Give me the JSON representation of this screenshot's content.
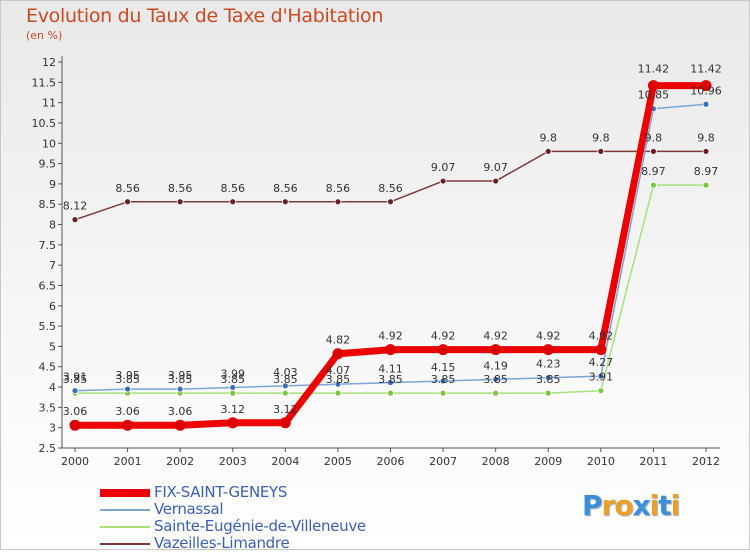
{
  "header": {
    "title": "Evolution du Taux de Taxe d'Habitation",
    "subtitle": "(en %)"
  },
  "logo": {
    "text": "Proxiti",
    "letters": [
      "P",
      "r",
      "o",
      "x",
      "i",
      "t",
      "i"
    ],
    "colors": [
      "#3a8fd8",
      "#e8a02a",
      "#e8a02a",
      "#3a8fd8",
      "#e8a02a",
      "#3a8fd8",
      "#e8a02a"
    ]
  },
  "chart_data": {
    "type": "line",
    "title": "Evolution du Taux de Taxe d'Habitation",
    "ylabel": "(en %)",
    "xlabel": "",
    "categories": [
      "2000",
      "2001",
      "2002",
      "2003",
      "2004",
      "2005",
      "2006",
      "2007",
      "2008",
      "2009",
      "2010",
      "2011",
      "2012"
    ],
    "ylim": [
      2.5,
      12
    ],
    "yticks": [
      "2.5",
      "3",
      "3.5",
      "4",
      "4.5",
      "5",
      "5.5",
      "6",
      "6.5",
      "7",
      "7.5",
      "8",
      "8.5",
      "9",
      "9.5",
      "10",
      "10.5",
      "11",
      "11.5",
      "12"
    ],
    "grid": false,
    "legend_position": "bottom-left",
    "series": [
      {
        "name": "FIX-SAINT-GENEYS",
        "color": "#ee0000",
        "marker": "#dd0000",
        "width": 7,
        "radius": 5.5,
        "values": [
          3.06,
          3.06,
          3.06,
          3.12,
          3.12,
          4.82,
          4.92,
          4.92,
          4.92,
          4.92,
          4.92,
          11.42,
          11.42
        ],
        "labels": [
          "3.06",
          "3.06",
          "3.06",
          "3.12",
          "3.12",
          "4.82",
          "4.92",
          "4.92",
          "4.92",
          "4.92",
          "4.92",
          "11.42",
          "11.42"
        ]
      },
      {
        "name": "Vernassal",
        "color": "#7aa6d6",
        "marker": "#3a6fb8",
        "width": 1.5,
        "radius": 3,
        "values": [
          3.91,
          3.95,
          3.95,
          3.99,
          4.03,
          4.07,
          4.11,
          4.15,
          4.19,
          4.23,
          4.27,
          10.85,
          10.96
        ],
        "labels": [
          "3.91",
          "3.95",
          "3.95",
          "3.99",
          "4.03",
          "4.07",
          "4.11",
          "4.15",
          "4.19",
          "4.23",
          "4.27",
          "10.85",
          "10.96"
        ]
      },
      {
        "name": "Sainte-Eugénie-de-Villeneuve",
        "color": "#a8e07a",
        "marker": "#78c840",
        "width": 1.5,
        "radius": 3,
        "values": [
          3.85,
          3.85,
          3.85,
          3.85,
          3.85,
          3.85,
          3.85,
          3.85,
          3.85,
          3.85,
          3.91,
          8.97,
          8.97
        ],
        "labels": [
          "3.85",
          "3.85",
          "3.85",
          "3.85",
          "3.85",
          "3.85",
          "3.85",
          "3.85",
          "3.85",
          "3.85",
          "3.91",
          "8.97",
          "8.97"
        ]
      },
      {
        "name": "Vazeilles-Limandre",
        "color": "#7a3a3a",
        "marker": "#6a2020",
        "width": 1.5,
        "radius": 3,
        "values": [
          8.12,
          8.56,
          8.56,
          8.56,
          8.56,
          8.56,
          8.56,
          9.07,
          9.07,
          9.8,
          9.8,
          9.8,
          9.8
        ],
        "labels": [
          "8.12",
          "8.56",
          "8.56",
          "8.56",
          "8.56",
          "8.56",
          "8.56",
          "9.07",
          "9.07",
          "9.8",
          "9.8",
          "9.8",
          "9.8"
        ]
      }
    ]
  }
}
